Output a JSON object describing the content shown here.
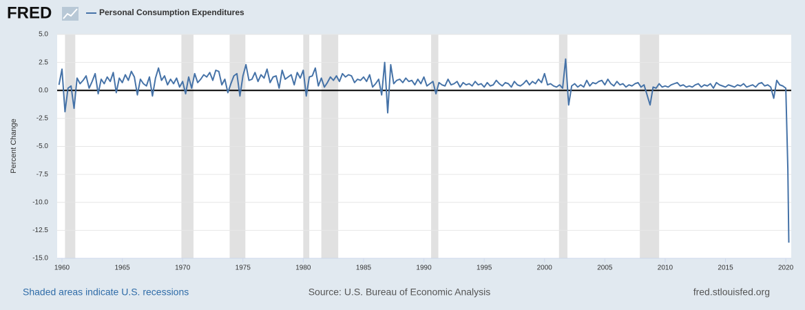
{
  "brand": "FRED",
  "chart_data": {
    "type": "line",
    "ylabel": "Percent Change",
    "note": "Shaded areas indicate U.S. recessions",
    "source": "Source: U.S. Bureau of Economic Analysis",
    "site": "fred.stlouisfed.org",
    "xlim": [
      1959.6,
      2020.45
    ],
    "xticks": [
      1960,
      1965,
      1970,
      1975,
      1980,
      1985,
      1990,
      1995,
      2000,
      2005,
      2010,
      2015,
      2020
    ],
    "ylim": [
      -15,
      5
    ],
    "yticks": [
      {
        "value": -15,
        "label": "-15.0"
      },
      {
        "value": -12.5,
        "label": "-12.5"
      },
      {
        "value": -10,
        "label": "-10.0"
      },
      {
        "value": -7.5,
        "label": "-7.5"
      },
      {
        "value": -5,
        "label": "-5.0"
      },
      {
        "value": -2.5,
        "label": "-2.5"
      },
      {
        "value": 0,
        "label": "0.0"
      },
      {
        "value": 2.5,
        "label": "2.5"
      },
      {
        "value": 5,
        "label": "5.0"
      }
    ],
    "recession_color": "#e1e1e1",
    "recessions": [
      [
        1960.25,
        1961.1
      ],
      [
        1969.9,
        1970.9
      ],
      [
        1973.9,
        1975.2
      ],
      [
        1980.0,
        1980.5
      ],
      [
        1981.5,
        1982.9
      ],
      [
        1990.6,
        1991.2
      ],
      [
        2001.2,
        2001.9
      ],
      [
        2007.9,
        2009.5
      ]
    ],
    "x": [
      1959.75,
      1960,
      1960.25,
      1960.5,
      1960.75,
      1961,
      1961.25,
      1961.5,
      1961.75,
      1962,
      1962.25,
      1962.5,
      1962.75,
      1963,
      1963.25,
      1963.5,
      1963.75,
      1964,
      1964.25,
      1964.5,
      1964.75,
      1965,
      1965.25,
      1965.5,
      1965.75,
      1966,
      1966.25,
      1966.5,
      1966.75,
      1967,
      1967.25,
      1967.5,
      1967.75,
      1968,
      1968.25,
      1968.5,
      1968.75,
      1969,
      1969.25,
      1969.5,
      1969.75,
      1970,
      1970.25,
      1970.5,
      1970.75,
      1971,
      1971.25,
      1971.5,
      1971.75,
      1972,
      1972.25,
      1972.5,
      1972.75,
      1973,
      1973.25,
      1973.5,
      1973.75,
      1974,
      1974.25,
      1974.5,
      1974.75,
      1975,
      1975.25,
      1975.5,
      1975.75,
      1976,
      1976.25,
      1976.5,
      1976.75,
      1977,
      1977.25,
      1977.5,
      1977.75,
      1978,
      1978.25,
      1978.5,
      1978.75,
      1979,
      1979.25,
      1979.5,
      1979.75,
      1980,
      1980.25,
      1980.5,
      1980.75,
      1981,
      1981.25,
      1981.5,
      1981.75,
      1982,
      1982.25,
      1982.5,
      1982.75,
      1983,
      1983.25,
      1983.5,
      1983.75,
      1984,
      1984.25,
      1984.5,
      1984.75,
      1985,
      1985.25,
      1985.5,
      1985.75,
      1986,
      1986.25,
      1986.5,
      1986.75,
      1987,
      1987.25,
      1987.5,
      1987.75,
      1988,
      1988.25,
      1988.5,
      1988.75,
      1989,
      1989.25,
      1989.5,
      1989.75,
      1990,
      1990.25,
      1990.5,
      1990.75,
      1991,
      1991.25,
      1991.5,
      1991.75,
      1992,
      1992.25,
      1992.5,
      1992.75,
      1993,
      1993.25,
      1993.5,
      1993.75,
      1994,
      1994.25,
      1994.5,
      1994.75,
      1995,
      1995.25,
      1995.5,
      1995.75,
      1996,
      1996.25,
      1996.5,
      1996.75,
      1997,
      1997.25,
      1997.5,
      1997.75,
      1998,
      1998.25,
      1998.5,
      1998.75,
      1999,
      1999.25,
      1999.5,
      1999.75,
      2000,
      2000.25,
      2000.5,
      2000.75,
      2001,
      2001.25,
      2001.5,
      2001.75,
      2002,
      2002.25,
      2002.5,
      2002.75,
      2003,
      2003.25,
      2003.5,
      2003.75,
      2004,
      2004.25,
      2004.5,
      2004.75,
      2005,
      2005.25,
      2005.5,
      2005.75,
      2006,
      2006.25,
      2006.5,
      2006.75,
      2007,
      2007.25,
      2007.5,
      2007.75,
      2008,
      2008.25,
      2008.5,
      2008.75,
      2009,
      2009.25,
      2009.5,
      2009.75,
      2010,
      2010.25,
      2010.5,
      2010.75,
      2011,
      2011.25,
      2011.5,
      2011.75,
      2012,
      2012.25,
      2012.5,
      2012.75,
      2013,
      2013.25,
      2013.5,
      2013.75,
      2014,
      2014.25,
      2014.5,
      2014.75,
      2015,
      2015.25,
      2015.5,
      2015.75,
      2016,
      2016.25,
      2016.5,
      2016.75,
      2017,
      2017.25,
      2017.5,
      2017.75,
      2018,
      2018.25,
      2018.5,
      2018.75,
      2019,
      2019.25,
      2019.5,
      2019.75,
      2020,
      2020.17,
      2020.25
    ],
    "series": [
      {
        "name": "Personal Consumption Expenditures",
        "color": "#4572a7",
        "values": [
          0.5,
          1.9,
          -1.9,
          0.2,
          0.4,
          -1.6,
          1.1,
          0.6,
          0.9,
          1.3,
          0.2,
          0.8,
          1.5,
          -0.3,
          1.0,
          0.6,
          1.2,
          0.8,
          1.6,
          -0.2,
          1.1,
          0.7,
          1.4,
          0.9,
          1.7,
          1.2,
          -0.4,
          1.0,
          0.6,
          0.4,
          1.2,
          -0.5,
          1.1,
          2.0,
          0.9,
          1.3,
          0.5,
          1.0,
          0.6,
          1.1,
          0.3,
          0.8,
          -0.3,
          1.2,
          0.2,
          1.5,
          0.7,
          1.0,
          1.4,
          1.2,
          1.6,
          0.9,
          1.8,
          1.7,
          0.5,
          1.0,
          -0.2,
          0.6,
          1.3,
          1.5,
          -0.5,
          1.3,
          2.3,
          0.9,
          1.0,
          1.6,
          0.8,
          1.4,
          1.1,
          1.9,
          0.7,
          1.2,
          1.3,
          0.2,
          1.8,
          1.0,
          1.2,
          1.4,
          0.5,
          1.6,
          1.1,
          1.8,
          -0.5,
          1.2,
          1.3,
          2.0,
          0.4,
          1.1,
          0.3,
          0.7,
          1.2,
          0.9,
          1.3,
          0.8,
          1.5,
          1.2,
          1.4,
          1.3,
          0.7,
          1.0,
          0.9,
          1.2,
          0.8,
          1.4,
          0.3,
          0.6,
          1.0,
          -0.4,
          2.5,
          -2.0,
          2.3,
          0.6,
          0.9,
          1.0,
          0.7,
          1.1,
          0.8,
          0.9,
          0.5,
          1.0,
          0.6,
          1.2,
          0.4,
          0.6,
          0.8,
          -0.3,
          0.7,
          0.5,
          0.4,
          1.0,
          0.5,
          0.6,
          0.8,
          0.3,
          0.7,
          0.5,
          0.6,
          0.4,
          0.8,
          0.5,
          0.6,
          0.3,
          0.7,
          0.4,
          0.5,
          0.9,
          0.6,
          0.4,
          0.7,
          0.6,
          0.3,
          0.8,
          0.5,
          0.4,
          0.6,
          0.9,
          0.5,
          0.8,
          0.6,
          1.0,
          0.7,
          1.5,
          0.5,
          0.6,
          0.4,
          0.3,
          0.5,
          0.2,
          2.8,
          -1.3,
          0.4,
          0.6,
          0.3,
          0.5,
          0.3,
          0.9,
          0.4,
          0.7,
          0.6,
          0.8,
          0.9,
          0.5,
          1.0,
          0.6,
          0.4,
          0.8,
          0.5,
          0.6,
          0.3,
          0.5,
          0.4,
          0.6,
          0.7,
          0.3,
          0.5,
          -0.4,
          -1.3,
          0.3,
          0.2,
          0.6,
          0.3,
          0.4,
          0.3,
          0.5,
          0.6,
          0.7,
          0.4,
          0.5,
          0.3,
          0.4,
          0.3,
          0.5,
          0.6,
          0.3,
          0.5,
          0.4,
          0.6,
          0.2,
          0.7,
          0.5,
          0.4,
          0.3,
          0.5,
          0.4,
          0.3,
          0.5,
          0.4,
          0.6,
          0.3,
          0.4,
          0.5,
          0.3,
          0.6,
          0.7,
          0.4,
          0.5,
          0.3,
          -0.7,
          0.9,
          0.5,
          0.4,
          0.2,
          -7.0,
          -13.6
        ]
      }
    ]
  }
}
